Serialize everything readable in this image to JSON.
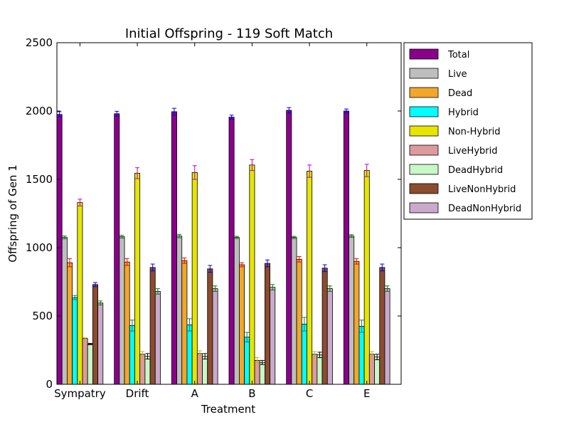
{
  "chart_data": {
    "type": "bar",
    "title": "Initial Offspring - 119 Soft Match",
    "xlabel": "Treatment",
    "ylabel": "Offspring of Gen 1",
    "ylim": [
      0,
      2500
    ],
    "yticks": [
      0,
      500,
      1000,
      1500,
      2000,
      2500
    ],
    "categories": [
      "Sympatry",
      "Drift",
      "A",
      "B",
      "C",
      "E"
    ],
    "legend_position": "outside-right",
    "grid": false,
    "series": [
      {
        "name": "Total",
        "color": "#8b008b",
        "error_color": "#0000ff",
        "values": [
          1975,
          1980,
          1995,
          1955,
          2005,
          2000
        ],
        "errors": [
          20,
          18,
          25,
          15,
          20,
          15
        ]
      },
      {
        "name": "Live",
        "color": "#bebebe",
        "error_color": "#008000",
        "values": [
          1075,
          1080,
          1085,
          1075,
          1075,
          1085
        ],
        "errors": [
          10,
          10,
          12,
          8,
          8,
          10
        ]
      },
      {
        "name": "Dead",
        "color": "#f2a72a",
        "error_color": "#ff0000",
        "values": [
          890,
          895,
          905,
          875,
          915,
          900
        ],
        "errors": [
          30,
          25,
          20,
          15,
          20,
          20
        ]
      },
      {
        "name": "Hybrid",
        "color": "#00ffff",
        "error_color": "#008080",
        "values": [
          635,
          430,
          435,
          345,
          440,
          425
        ],
        "errors": [
          15,
          40,
          45,
          35,
          50,
          45
        ]
      },
      {
        "name": "Non-Hybrid",
        "color": "#e5e500",
        "error_color": "#bf00bf",
        "values": [
          1330,
          1545,
          1550,
          1605,
          1560,
          1565
        ],
        "errors": [
          25,
          40,
          50,
          40,
          45,
          45
        ]
      },
      {
        "name": "LiveHybrid",
        "color": "#dd9a9d",
        "error_color": "#bfbf00",
        "values": [
          335,
          220,
          225,
          175,
          220,
          220
        ],
        "errors": [
          5,
          20,
          20,
          20,
          20,
          20
        ]
      },
      {
        "name": "DeadHybrid",
        "color": "#c7f8c7",
        "error_color": "#000000",
        "values": [
          295,
          205,
          205,
          160,
          215,
          200
        ],
        "errors": [
          5,
          20,
          20,
          15,
          20,
          20
        ]
      },
      {
        "name": "LiveNonHybrid",
        "color": "#8b4c2f",
        "error_color": "#0000ff",
        "values": [
          730,
          855,
          845,
          885,
          850,
          855
        ],
        "errors": [
          15,
          25,
          25,
          25,
          25,
          25
        ]
      },
      {
        "name": "DeadNonHybrid",
        "color": "#c9a9cc",
        "error_color": "#008000",
        "values": [
          595,
          680,
          700,
          710,
          700,
          700
        ],
        "errors": [
          15,
          20,
          20,
          20,
          20,
          20
        ]
      }
    ]
  }
}
